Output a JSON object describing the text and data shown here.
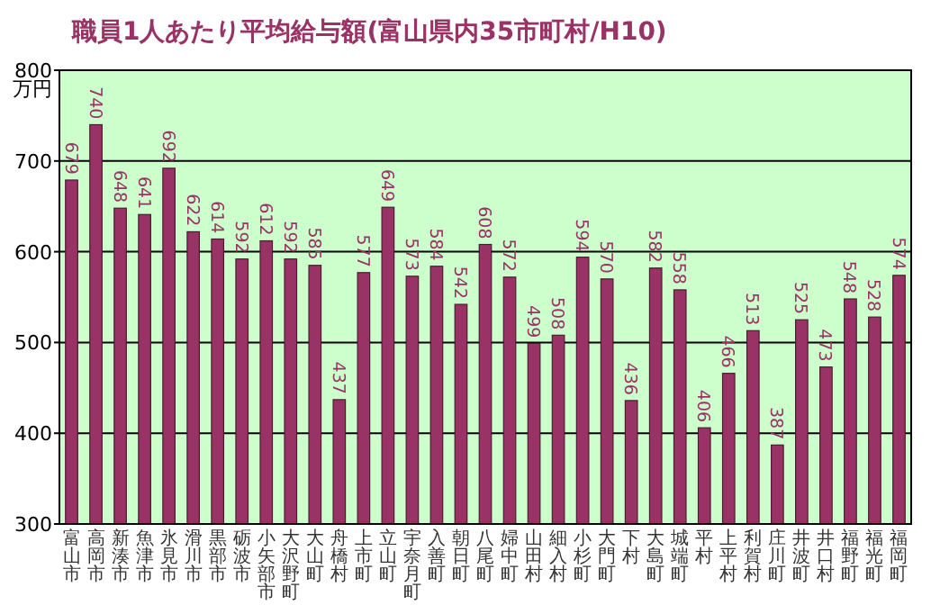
{
  "chart_data": {
    "type": "bar",
    "title": "職員1人あたり平均給与額(富山県内35市町村/H10)",
    "ylabel": "万円",
    "categories": [
      "富山市",
      "高岡市",
      "新湊市",
      "魚津市",
      "氷見市",
      "滑川市",
      "黒部市",
      "砺波市",
      "小矢部市",
      "大沢野町",
      "大山町",
      "舟橋村",
      "上市町",
      "立山町",
      "宇奈月町",
      "入善町",
      "朝日町",
      "八尾町",
      "婦中町",
      "山田村",
      "細入村",
      "小杉町",
      "大門町",
      "下村",
      "大島町",
      "城端町",
      "平村",
      "上平村",
      "利賀村",
      "庄川町",
      "井波町",
      "井口村",
      "福野町",
      "福光町",
      "福岡町"
    ],
    "values": [
      679,
      740,
      648,
      641,
      692,
      622,
      614,
      592,
      612,
      592,
      585,
      437,
      577,
      649,
      573,
      584,
      542,
      608,
      572,
      499,
      508,
      594,
      570,
      436,
      582,
      558,
      406,
      466,
      513,
      387,
      525,
      473,
      548,
      528,
      574
    ],
    "color": "#993366",
    "ylim": [
      300,
      800
    ],
    "yticks": [
      300,
      400,
      500,
      600,
      700,
      800
    ],
    "grid": "y",
    "data_labels": true
  }
}
